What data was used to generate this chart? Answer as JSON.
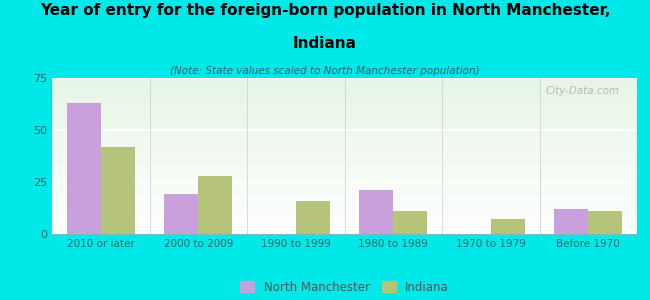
{
  "categories": [
    "2010 or later",
    "2000 to 2009",
    "1990 to 1999",
    "1980 to 1989",
    "1970 to 1979",
    "Before 1970"
  ],
  "north_manchester": [
    63,
    19,
    0,
    21,
    0,
    12
  ],
  "indiana": [
    42,
    28,
    16,
    11,
    7,
    11
  ],
  "nm_color": "#c9a0dc",
  "in_color": "#b5c47a",
  "title_line1": "Year of entry for the foreign-born population in North Manchester,",
  "title_line2": "Indiana",
  "subtitle": "(Note: State values scaled to North Manchester population)",
  "legend_nm": "North Manchester",
  "legend_in": "Indiana",
  "ylim": [
    0,
    75
  ],
  "yticks": [
    0,
    25,
    50,
    75
  ],
  "background_color": "#00e8e8",
  "watermark": "City-Data.com",
  "bar_width": 0.35,
  "title_color": "#000000",
  "subtitle_color": "#336666",
  "tick_color": "#336666",
  "grid_color": "#ffffff"
}
